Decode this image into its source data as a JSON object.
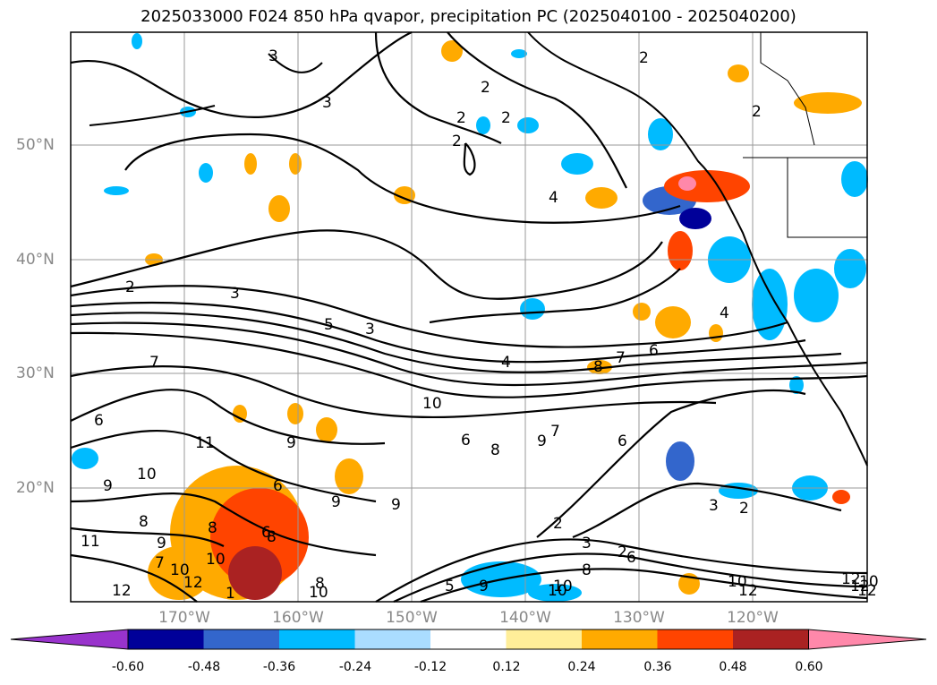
{
  "title": "2025033000 F024 850 hPa qvapor, precipitation PC (2025040100 - 2025040200)",
  "lat_labels": [
    "50°N",
    "40°N",
    "30°N",
    "20°N"
  ],
  "lon_labels": [
    "170°W",
    "160°W",
    "150°W",
    "140°W",
    "130°W",
    "120°W"
  ],
  "colorbar": {
    "ticks": [
      "-0.60",
      "-0.48",
      "-0.36",
      "-0.24",
      "-0.12",
      "0.12",
      "0.24",
      "0.36",
      "0.48",
      "0.60"
    ],
    "colors": [
      "#9933cc",
      "#000099",
      "#3366cc",
      "#00bbff",
      "#aaddff",
      "#ffffff",
      "#ffee99",
      "#ffaa00",
      "#ff4400",
      "#aa2222",
      "#ff88aa"
    ]
  },
  "contour_labels": [
    "3",
    "2",
    "3",
    "2",
    "2",
    "2",
    "2",
    "4",
    "2",
    "4",
    "2",
    "3",
    "3",
    "5",
    "4",
    "8",
    "7",
    "6",
    "10",
    "7",
    "6",
    "11",
    "10",
    "9",
    "8",
    "11",
    "9",
    "8",
    "6",
    "9",
    "9",
    "8",
    "6",
    "8",
    "9",
    "6",
    "7",
    "2",
    "2",
    "3",
    "2",
    "3",
    "6",
    "8",
    "10",
    "12",
    "10",
    "9",
    "10",
    "10",
    "12",
    "12",
    "8",
    "5",
    "10",
    "7",
    "10",
    "9",
    "6",
    "1",
    "12",
    "10",
    "12",
    "12"
  ],
  "colors": {
    "frame": "#000000",
    "grid": "#888888",
    "label": "#888888"
  }
}
